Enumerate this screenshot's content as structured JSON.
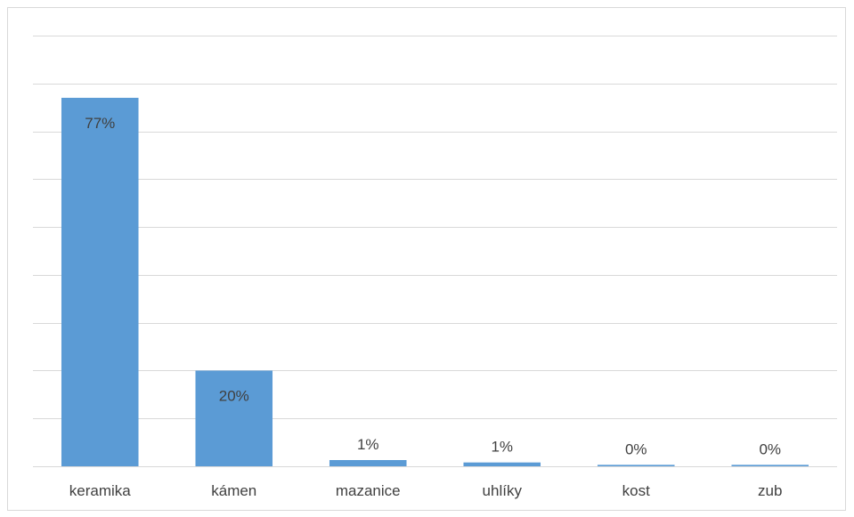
{
  "chart_data": {
    "type": "bar",
    "title": "",
    "xlabel": "",
    "ylabel": "",
    "categories": [
      "keramika",
      "kámen",
      "mazanice",
      "uhlíky",
      "kost",
      "zub"
    ],
    "values": [
      77,
      20,
      1.3,
      0.8,
      0.3,
      0.3
    ],
    "data_labels": [
      "77%",
      "20%",
      "1%",
      "1%",
      "0%",
      "0%"
    ],
    "ylim": [
      0,
      90
    ],
    "y_gridline_step": 10,
    "y_tick_labels_visible": false,
    "grid": true,
    "legend": "none",
    "bar_color": "#5b9bd5",
    "gridline_color": "#d9d9d9",
    "label_color": "#404040"
  }
}
